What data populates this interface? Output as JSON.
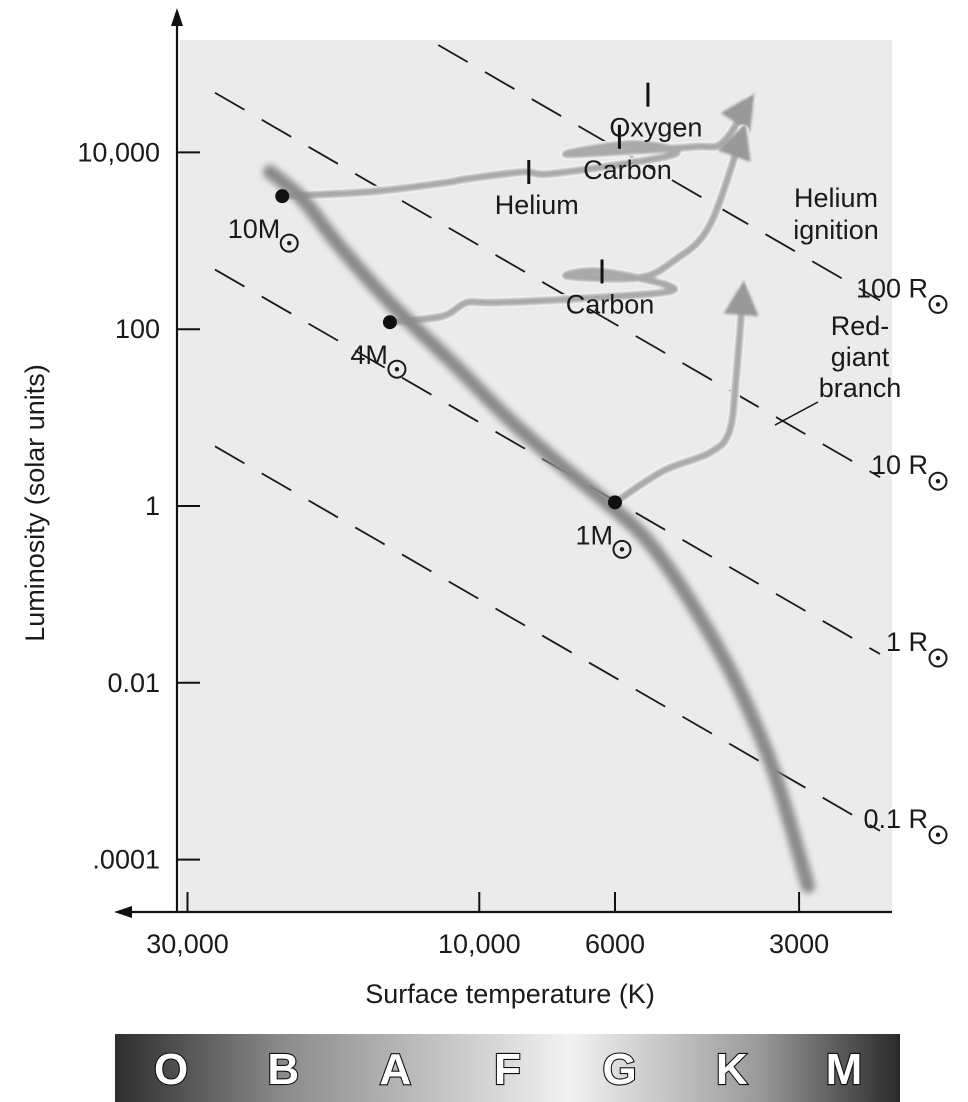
{
  "chart_data": {
    "type": "line",
    "title": "",
    "xlabel": "Surface temperature (K)",
    "ylabel": "Luminosity (solar units)",
    "x_scale": "log, reversed (temperature decreases to the right)",
    "y_scale": "log",
    "xlim": [
      40000,
      2500
    ],
    "ylim": [
      3e-05,
      1000000
    ],
    "x_ticks": [
      {
        "value": 30000,
        "label": "30,000"
      },
      {
        "value": 10000,
        "label": "10,000"
      },
      {
        "value": 6000,
        "label": "6000"
      },
      {
        "value": 3000,
        "label": "3000"
      }
    ],
    "y_ticks": [
      {
        "value": 10000,
        "label": "10,000"
      },
      {
        "value": 100,
        "label": "100"
      },
      {
        "value": 1,
        "label": "1"
      },
      {
        "value": 0.01,
        "label": "0.01"
      },
      {
        "value": 0.0001,
        "label": ".0001"
      }
    ],
    "grid": false,
    "background": "#ebebeb",
    "main_sequence": [
      {
        "x": 22000,
        "y": 6000
      },
      {
        "x": 19500,
        "y": 3000
      },
      {
        "x": 17000,
        "y": 900
      },
      {
        "x": 14000,
        "y": 200
      },
      {
        "x": 11000,
        "y": 40
      },
      {
        "x": 9000,
        "y": 10
      },
      {
        "x": 7400,
        "y": 3
      },
      {
        "x": 6200,
        "y": 1.1
      },
      {
        "x": 5300,
        "y": 0.4
      },
      {
        "x": 4500,
        "y": 0.08
      },
      {
        "x": 3800,
        "y": 0.01
      },
      {
        "x": 3300,
        "y": 0.001
      },
      {
        "x": 2900,
        "y": 5e-05
      }
    ],
    "radius_lines": [
      {
        "label": "100 R",
        "radius": 100
      },
      {
        "label": "10 R",
        "radius": 10
      },
      {
        "label": "1 R",
        "radius": 1
      },
      {
        "label": "0.1 R",
        "radius": 0.1
      }
    ],
    "stars": [
      {
        "label": "10M",
        "temp": 21000,
        "lum": 3200
      },
      {
        "label": "4M",
        "temp": 14000,
        "lum": 120
      },
      {
        "label": "1M",
        "temp": 6000,
        "lum": 1.1
      }
    ],
    "tracks": [
      {
        "name": "10M track",
        "points": [
          [
            21000,
            3200
          ],
          [
            15000,
            3600
          ],
          [
            11500,
            4500
          ],
          [
            10500,
            5000
          ],
          [
            8500,
            6000
          ],
          [
            7500,
            5800
          ],
          [
            4800,
            9500
          ],
          [
            5600,
            12500
          ],
          [
            7200,
            9500
          ],
          [
            4500,
            11500
          ],
          [
            4000,
            13000
          ],
          [
            3600,
            40000
          ]
        ],
        "labels": [
          {
            "text": "Helium",
            "temp": 8300,
            "lum": 6000
          },
          {
            "text": "Carbon",
            "temp": 5900,
            "lum": 15000
          },
          {
            "text": "Oxygen",
            "temp": 5300,
            "lum": 45000
          }
        ]
      },
      {
        "name": "4M track",
        "points": [
          [
            14000,
            120
          ],
          [
            11500,
            140
          ],
          [
            10500,
            200
          ],
          [
            9500,
            200
          ],
          [
            7000,
            220
          ],
          [
            4800,
            280
          ],
          [
            6300,
            450
          ],
          [
            7200,
            400
          ],
          [
            5500,
            380
          ],
          [
            4800,
            600
          ],
          [
            4200,
            1500
          ],
          [
            3700,
            18000
          ]
        ],
        "labels": [
          {
            "text": "Carbon",
            "temp": 6300,
            "lum": 450
          }
        ]
      },
      {
        "name": "1M track",
        "points": [
          [
            6000,
            1.1
          ],
          [
            5000,
            2.5
          ],
          [
            4200,
            4
          ],
          [
            3900,
            7
          ],
          [
            3800,
            30
          ],
          [
            3700,
            300
          ]
        ],
        "labels": []
      }
    ],
    "annotations": [
      {
        "text": "Helium ignition",
        "lines": [
          "Helium",
          "ignition"
        ]
      },
      {
        "text": "Red-giant branch",
        "lines": [
          "Red-",
          "giant",
          "branch"
        ]
      }
    ],
    "spectral_classes": [
      "O",
      "B",
      "A",
      "F",
      "G",
      "K",
      "M"
    ]
  }
}
